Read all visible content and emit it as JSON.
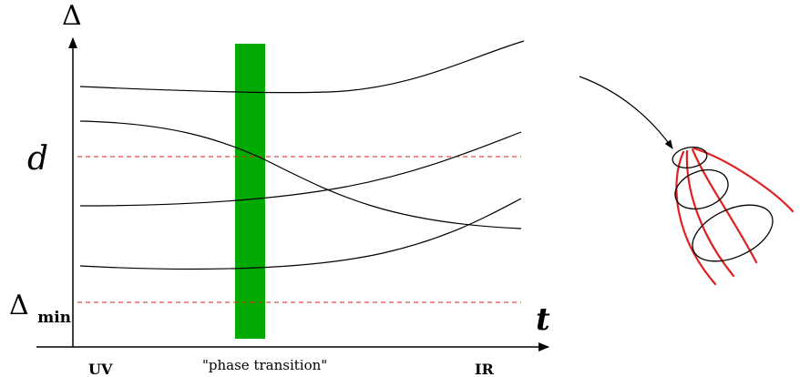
{
  "axes": {
    "y_label": "Δ",
    "x_label": "t",
    "uv_label": "UV",
    "ir_label": "IR",
    "d_label": "d",
    "delta_min_main": "Δ",
    "delta_min_sub": "min"
  },
  "phase_transition": {
    "label": "\"phase transition\"",
    "color": "#00aa00"
  },
  "colors": {
    "curves": "#000000",
    "dashed_lines": "#e02020",
    "cone": "#e02020",
    "ellipses": "#000000"
  },
  "icons": {
    "flow_arrow": "curved-arrow-icon",
    "cone": "rg-flow-cone-icon"
  }
}
